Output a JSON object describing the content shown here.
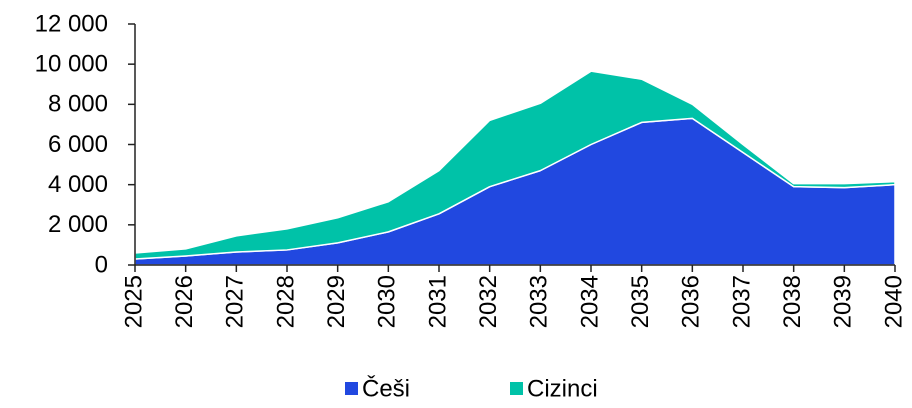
{
  "chart_data": {
    "type": "stacked_area",
    "categories": [
      "2025",
      "2026",
      "2027",
      "2028",
      "2029",
      "2030",
      "2031",
      "2032",
      "2033",
      "2034",
      "2035",
      "2036",
      "2037",
      "2038",
      "2039",
      "2040"
    ],
    "series": [
      {
        "name": "Češi",
        "color": "#2148e0",
        "values": [
          300,
          450,
          650,
          750,
          1100,
          1650,
          2550,
          3900,
          4700,
          6000,
          7100,
          7300,
          5600,
          3900,
          3850,
          4000
        ]
      },
      {
        "name": "Cizinci",
        "color": "#00c2a8",
        "values": [
          300,
          350,
          800,
          1050,
          1250,
          1500,
          2150,
          3300,
          3350,
          3650,
          2150,
          700,
          400,
          150,
          200,
          150
        ]
      }
    ],
    "ylim": [
      0,
      12000
    ],
    "yticks": [
      0,
      {
        "value": 2000,
        "label": "2 000"
      },
      {
        "value": 4000,
        "label": "4 000"
      },
      {
        "value": 6000,
        "label": "6 000"
      },
      {
        "value": 8000,
        "label": "8 000"
      },
      {
        "value": 10000,
        "label": "10 000"
      },
      {
        "value": 12000,
        "label": "12 000"
      }
    ],
    "legend": "bottom"
  }
}
